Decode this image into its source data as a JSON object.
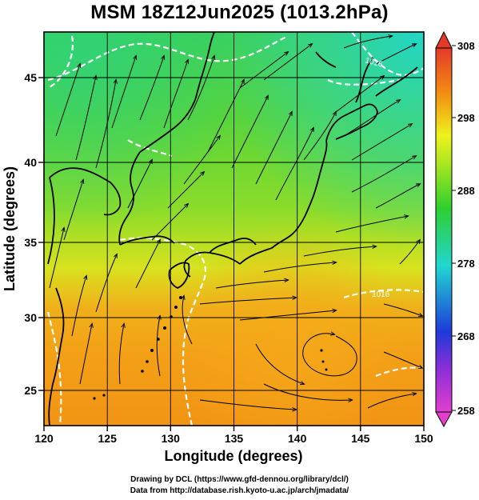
{
  "title": "MSM 18Z12Jun2025 (1013.2hPa)",
  "axes": {
    "xlabel": "Longitude (degrees)",
    "ylabel": "Latitude  (degrees)",
    "x_ticks": [
      "120",
      "125",
      "130",
      "135",
      "140",
      "145",
      "150"
    ],
    "y_ticks": [
      "25",
      "30",
      "35",
      "40",
      "45"
    ],
    "x_range": [
      120,
      150
    ],
    "y_range": [
      22.4,
      47.6
    ]
  },
  "colorbar": {
    "labels": [
      "308",
      "298",
      "288",
      "278",
      "268",
      "258"
    ],
    "range": [
      258,
      308
    ],
    "colors": {
      "magenta": "#e23fcf",
      "blue": "#1e3ad9",
      "cyan": "#21d6d0",
      "green": "#2fcf2f",
      "yellow": "#eef21c",
      "orange": "#f28a12",
      "red": "#e5392a"
    }
  },
  "contour_labels": [
    "1016",
    "1016"
  ],
  "footer": {
    "line1": "Drawing by DCL (https://www.gfd-dennou.org/library/dcl/)",
    "line2": "Data from http://database.rish.kyoto-u.ac.jp/arch/jmadata/"
  }
}
